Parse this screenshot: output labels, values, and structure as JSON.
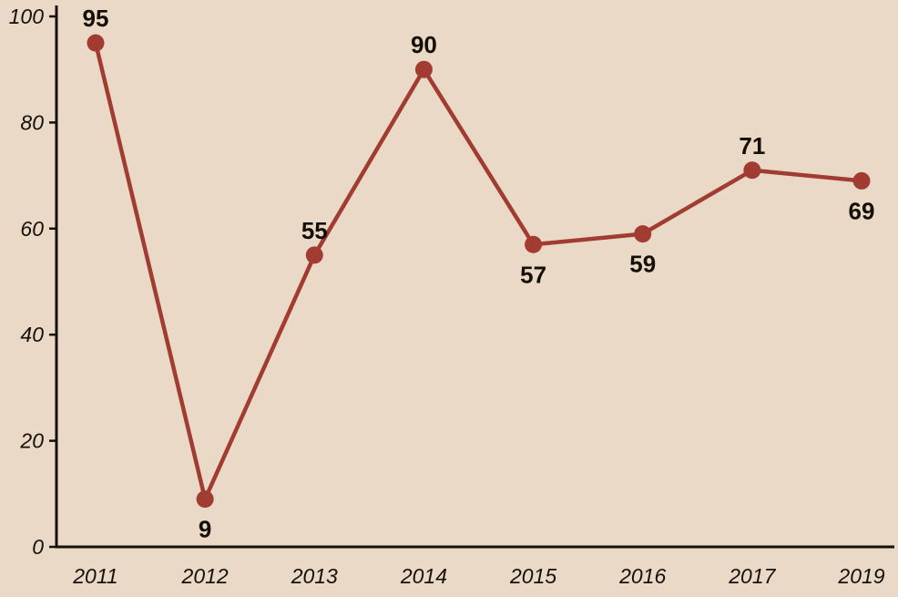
{
  "chart_data": {
    "type": "line",
    "title": "",
    "xlabel": "",
    "ylabel": "",
    "categories": [
      "2011",
      "2012",
      "2013",
      "2014",
      "2015",
      "2016",
      "2017",
      "2019"
    ],
    "values": [
      95,
      9,
      55,
      90,
      57,
      59,
      71,
      69
    ],
    "data_labels": [
      "95",
      "9",
      "55",
      "90",
      "57",
      "59",
      "71",
      "69"
    ],
    "label_positions": [
      "above",
      "below",
      "above",
      "above",
      "below",
      "below",
      "above",
      "below"
    ],
    "yticks": [
      0,
      20,
      40,
      60,
      80,
      100
    ],
    "ylim": [
      0,
      100
    ],
    "grid": false,
    "legend": false,
    "colors": {
      "background": "#ead9c6",
      "line": "#a23b31",
      "marker": "#a23b31",
      "axis": "#15100a",
      "tick_label": "#15100a",
      "point_label": "#140f07"
    }
  }
}
